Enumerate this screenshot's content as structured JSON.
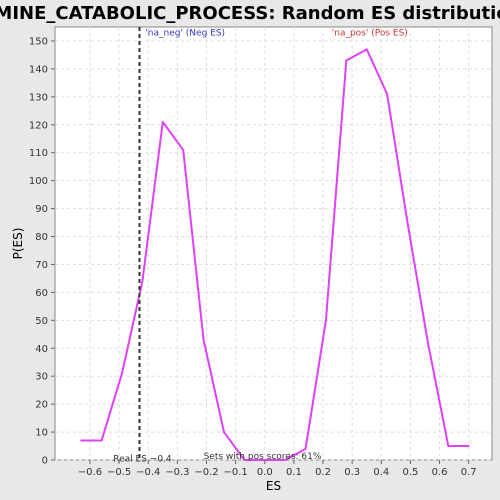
{
  "chart_data": {
    "type": "line",
    "title": "AMINE_CATABOLIC_PROCESS: Random ES distribution",
    "xlabel": "ES",
    "ylabel": "P(ES)",
    "xlim": [
      -0.72,
      0.78
    ],
    "ylim": [
      0,
      155
    ],
    "xticks": [
      -0.6,
      -0.5,
      -0.4,
      -0.3,
      -0.2,
      -0.1,
      0.0,
      0.1,
      0.2,
      0.3,
      0.4,
      0.5,
      0.6,
      0.7
    ],
    "xtick_labels": [
      "−0.6",
      "−0.5",
      "−0.4",
      "−0.3",
      "−0.2",
      "−0.1",
      "0.0",
      "0.1",
      "0.2",
      "0.3",
      "0.4",
      "0.5",
      "0.6",
      "0.7"
    ],
    "yticks": [
      0,
      10,
      20,
      30,
      40,
      50,
      60,
      70,
      80,
      90,
      100,
      110,
      120,
      130,
      140,
      150
    ],
    "grid": true,
    "series": [
      {
        "color": "#e040fb",
        "x": [
          -0.63,
          -0.56,
          -0.49,
          -0.42,
          -0.35,
          -0.28,
          -0.21,
          -0.14,
          -0.07,
          0.0,
          0.07,
          0.14,
          0.21,
          0.28,
          0.35,
          0.42,
          0.49,
          0.56,
          0.63,
          0.7
        ],
        "y": [
          7,
          7,
          31,
          64,
          121,
          111,
          43,
          10,
          0,
          0,
          0,
          4,
          50,
          143,
          147,
          131,
          85,
          42,
          5,
          5
        ]
      }
    ],
    "reference_line": {
      "x": -0.43,
      "color": "#333333",
      "style": "dashed"
    },
    "annotations": {
      "neg": {
        "text": "'na_neg' (Neg ES)",
        "color": "#3333cc",
        "x": -0.41,
        "y": 153
      },
      "pos": {
        "text": "'na_pos' (Pos ES)",
        "color": "#cc3333",
        "x": 0.23,
        "y": 153
      },
      "real_es": {
        "text": "Real ES −0.4",
        "color": "#333333",
        "x": -0.52,
        "y": 0.5
      },
      "pos_scores": {
        "text": "Sets with pos scores: 61%",
        "color": "#333333",
        "x": -0.21,
        "y": 1.5
      }
    }
  }
}
